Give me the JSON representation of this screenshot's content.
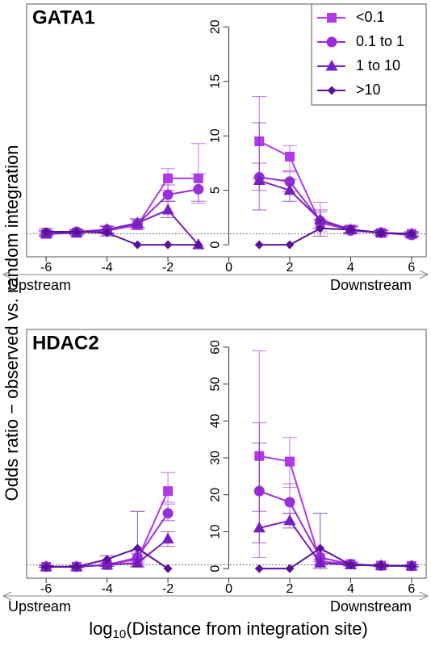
{
  "chart_data": [
    {
      "type": "line",
      "title": "GATA1",
      "legend": "top-right",
      "reference_line": 1,
      "annotations": [
        "Upstream",
        "Downstream"
      ],
      "x": [
        -6,
        -5,
        -4,
        -3,
        -2,
        -1,
        0,
        1,
        2,
        3,
        4,
        5,
        6
      ],
      "xlim": [
        -6.64,
        6.48
      ],
      "xticks": [
        -6,
        -4,
        -2,
        0,
        2,
        4,
        6
      ],
      "ylim": [
        -1.1,
        22.1
      ],
      "yticks": [
        0,
        5,
        10,
        15,
        20
      ],
      "series": [
        {
          "name": "<0.1",
          "color": "#b03ae8",
          "marker": "square",
          "values": [
            1.0,
            1.1,
            1.3,
            1.8,
            6.1,
            6.1,
            null,
            9.5,
            8.1,
            2.0,
            1.4,
            1.1,
            1.0
          ],
          "low": [
            0.8,
            0.9,
            1.0,
            1.4,
            5.0,
            3.8,
            null,
            6.1,
            6.8,
            1.2,
            1.1,
            0.9,
            0.8
          ],
          "high": [
            1.3,
            1.3,
            1.7,
            2.3,
            7.0,
            9.3,
            null,
            13.6,
            9.1,
            3.9,
            1.8,
            1.4,
            1.2
          ]
        },
        {
          "name": "0.1 to 1",
          "color": "#9a2ed8",
          "marker": "circle",
          "values": [
            1.1,
            1.2,
            1.4,
            1.9,
            4.6,
            5.1,
            null,
            6.2,
            5.8,
            2.2,
            1.3,
            1.1,
            0.9
          ],
          "low": [
            0.9,
            1.0,
            1.1,
            1.5,
            4.0,
            4.0,
            null,
            5.0,
            4.9,
            1.5,
            1.0,
            0.9,
            0.7
          ],
          "high": [
            1.3,
            1.4,
            1.7,
            2.3,
            5.5,
            6.5,
            null,
            7.5,
            6.7,
            3.0,
            1.6,
            1.3,
            1.1
          ]
        },
        {
          "name": "1 to 10",
          "color": "#7a1fc0",
          "marker": "triangle",
          "values": [
            1.0,
            1.1,
            1.4,
            2.0,
            3.2,
            0,
            null,
            5.9,
            5.0,
            2.3,
            1.4,
            1.1,
            1.0
          ],
          "low": [
            0.8,
            0.9,
            1.1,
            1.6,
            2.5,
            null,
            null,
            3.2,
            4.0,
            1.5,
            1.1,
            0.9,
            0.8
          ],
          "high": [
            1.2,
            1.3,
            1.7,
            2.4,
            4.0,
            null,
            null,
            11.2,
            6.0,
            3.2,
            1.7,
            1.3,
            1.2
          ]
        },
        {
          "name": ">10",
          "color": "#5a1199",
          "marker": "diamond",
          "values": [
            1.2,
            1.2,
            1.1,
            0,
            0,
            0,
            null,
            0,
            0,
            1.5,
            1.4,
            1.1,
            1.0
          ],
          "low": [
            0.9,
            1.0,
            0.8,
            null,
            null,
            null,
            null,
            null,
            null,
            0.8,
            1.1,
            0.9,
            0.8
          ],
          "high": [
            1.5,
            1.4,
            1.4,
            null,
            null,
            null,
            null,
            null,
            null,
            2.3,
            1.7,
            1.3,
            1.2
          ]
        }
      ]
    },
    {
      "type": "line",
      "title": "HDAC2",
      "reference_line": 1,
      "annotations": [
        "Upstream",
        "Downstream"
      ],
      "x": [
        -6,
        -5,
        -4,
        -3,
        -2,
        -1,
        0,
        1,
        2,
        3,
        4,
        5,
        6
      ],
      "xlim": [
        -6.64,
        6.48
      ],
      "xticks": [
        -6,
        -4,
        -2,
        0,
        2,
        4,
        6
      ],
      "ylim": [
        -2.6,
        64.8
      ],
      "yticks": [
        0,
        10,
        20,
        30,
        40,
        50,
        60
      ],
      "series": [
        {
          "color": "#b03ae8",
          "marker": "square",
          "values": [
            0.5,
            0.5,
            1.0,
            2.5,
            21,
            null,
            null,
            30.5,
            29,
            2,
            1.2,
            0.8,
            0.7
          ],
          "low": [
            0.3,
            0.3,
            0.6,
            1.5,
            18,
            null,
            null,
            3,
            22,
            1,
            0.8,
            0.5,
            0.5
          ],
          "high": [
            0.8,
            0.8,
            1.5,
            4,
            26,
            null,
            null,
            59,
            35.5,
            4,
            1.8,
            1.2,
            1
          ]
        },
        {
          "color": "#9a2ed8",
          "marker": "circle",
          "values": [
            0.5,
            0.5,
            1.0,
            3.0,
            15,
            null,
            null,
            21,
            18,
            3,
            1.2,
            0.8,
            0.7
          ],
          "low": [
            0.3,
            0.3,
            0.6,
            2,
            13,
            null,
            null,
            15.5,
            15,
            2,
            0.8,
            0.5,
            0.5
          ],
          "high": [
            0.8,
            0.8,
            1.5,
            4.5,
            17.5,
            null,
            null,
            39.5,
            23,
            4.5,
            1.8,
            1.2,
            1
          ]
        },
        {
          "color": "#7a1fc0",
          "marker": "triangle",
          "values": [
            0.5,
            0.5,
            1.0,
            1.5,
            8,
            null,
            null,
            11,
            13,
            1.5,
            1,
            0.8,
            0.7
          ],
          "low": [
            0.3,
            0.3,
            0.6,
            1,
            6,
            null,
            null,
            7,
            11,
            1,
            0.7,
            0.5,
            0.5
          ],
          "high": [
            0.8,
            0.8,
            1.5,
            2.5,
            10,
            null,
            null,
            34,
            15,
            2.5,
            1.5,
            1.2,
            1
          ]
        },
        {
          "color": "#5a1199",
          "marker": "diamond",
          "values": [
            0.5,
            0.5,
            2.5,
            5.5,
            0,
            null,
            null,
            0,
            0,
            5.5,
            1,
            0.8,
            0.7
          ],
          "low": [
            0.3,
            0.3,
            1.5,
            0.5,
            null,
            null,
            null,
            null,
            null,
            0,
            0.7,
            0.5,
            0.5
          ],
          "high": [
            0.8,
            0.8,
            3.5,
            15.5,
            null,
            null,
            null,
            null,
            null,
            15,
            1.5,
            1.2,
            1
          ]
        }
      ]
    }
  ],
  "y_label": "Odds ratio − observed vs. random integration",
  "x_label": {
    "pre": "log",
    "sub": "10",
    "post": "(Distance from integration site)"
  }
}
